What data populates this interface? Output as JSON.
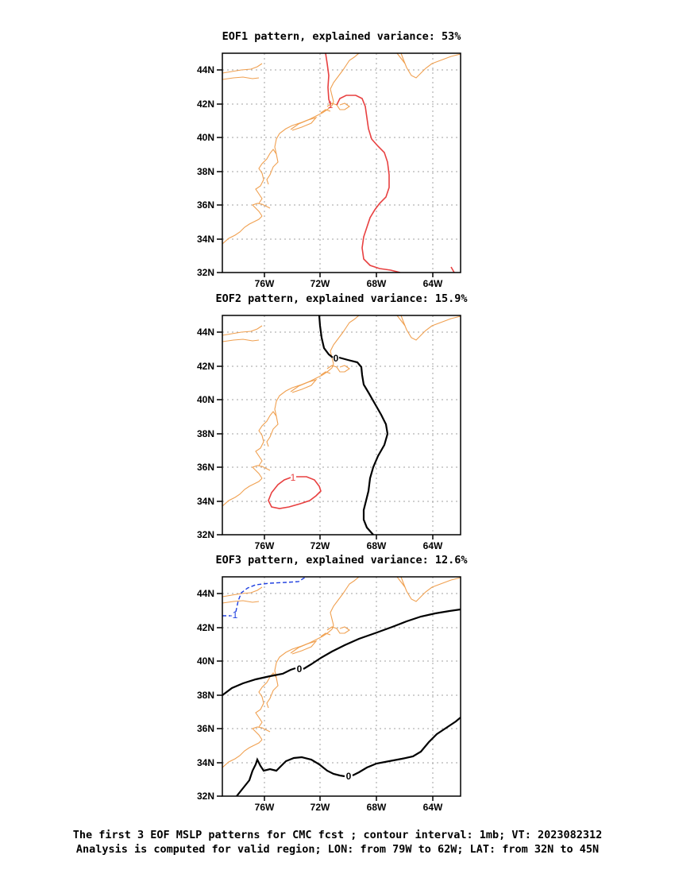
{
  "panels": [
    {
      "title": "EOF1 pattern, explained variance: 53%",
      "contour_labels": [
        "1"
      ]
    },
    {
      "title": "EOF2 pattern, explained variance: 15.9%",
      "contour_labels": [
        "0",
        "1"
      ]
    },
    {
      "title": "EOF3 pattern, explained variance: 12.6%",
      "contour_labels": [
        "-1",
        "0",
        "0"
      ]
    }
  ],
  "axes": {
    "lat_ticks": [
      "44N",
      "42N",
      "40N",
      "38N",
      "36N",
      "34N",
      "32N"
    ],
    "lon_ticks": [
      "76W",
      "72W",
      "68W",
      "64W"
    ]
  },
  "colors": {
    "coastline": "#f0a050",
    "positive_contour": "#e84040",
    "zero_contour": "#000000",
    "negative_contour": "#2040e0",
    "grid": "#a0a0a0"
  },
  "caption": {
    "line1": "The first 3 EOF MSLP patterns for CMC fcst ; contour interval: 1mb; VT: 2023082312",
    "line2": "Analysis is computed for valid region; LON: from 79W to 62W; LAT: from 32N to 45N"
  }
}
